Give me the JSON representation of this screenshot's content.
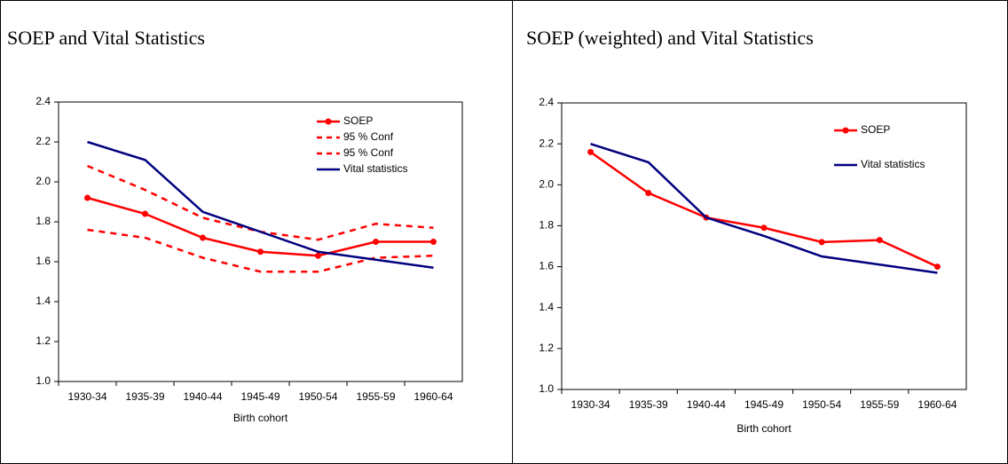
{
  "chart_data": [
    {
      "type": "line",
      "title": "SOEP and Vital Statistics",
      "x_label": "Birth cohort",
      "categories": [
        "1930-34",
        "1935-39",
        "1940-44",
        "1945-49",
        "1950-54",
        "1955-59",
        "1960-64"
      ],
      "series": [
        {
          "name": "SOEP",
          "color": "#ff0000",
          "marker": "circle",
          "dashed": false,
          "values": [
            1.92,
            1.84,
            1.72,
            1.65,
            1.63,
            1.7,
            1.7
          ]
        },
        {
          "name": "95 % Conf",
          "color": "#ff0000",
          "marker": "none",
          "dashed": true,
          "values": [
            2.08,
            1.96,
            1.82,
            1.75,
            1.71,
            1.79,
            1.77
          ]
        },
        {
          "name": "95 % Conf",
          "color": "#ff0000",
          "marker": "none",
          "dashed": true,
          "values": [
            1.76,
            1.72,
            1.62,
            1.55,
            1.55,
            1.62,
            1.63
          ]
        },
        {
          "name": "Vital statistics",
          "color": "#000080",
          "marker": "none",
          "dashed": false,
          "values": [
            2.2,
            2.11,
            1.85,
            1.75,
            1.65,
            1.61,
            1.57
          ]
        }
      ],
      "ylim": [
        1.0,
        2.4
      ],
      "yticks": [
        {
          "value": 1.0,
          "label": "1.0"
        },
        1.2,
        1.4,
        1.6,
        1.8,
        {
          "value": 2.0,
          "label": "2.0"
        },
        2.2,
        2.4
      ],
      "grid": false
    },
    {
      "type": "line",
      "title": "SOEP (weighted) and Vital Statistics",
      "x_label": "Birth cohort",
      "categories": [
        "1930-34",
        "1935-39",
        "1940-44",
        "1945-49",
        "1950-54",
        "1955-59",
        "1960-64"
      ],
      "series": [
        {
          "name": "SOEP",
          "color": "#ff0000",
          "marker": "circle",
          "dashed": false,
          "values": [
            2.16,
            1.96,
            1.84,
            1.79,
            1.72,
            1.73,
            1.6
          ]
        },
        {
          "name": "Vital statistics",
          "color": "#000080",
          "marker": "none",
          "dashed": false,
          "values": [
            2.2,
            2.11,
            1.84,
            1.75,
            1.65,
            1.61,
            1.57
          ]
        }
      ],
      "ylim": [
        1.0,
        2.4
      ],
      "yticks": [
        {
          "value": 1.0,
          "label": "1.0"
        },
        1.2,
        1.4,
        1.6,
        1.8,
        {
          "value": 2.0,
          "label": "2.0"
        },
        2.2,
        2.4
      ],
      "grid": false
    }
  ]
}
